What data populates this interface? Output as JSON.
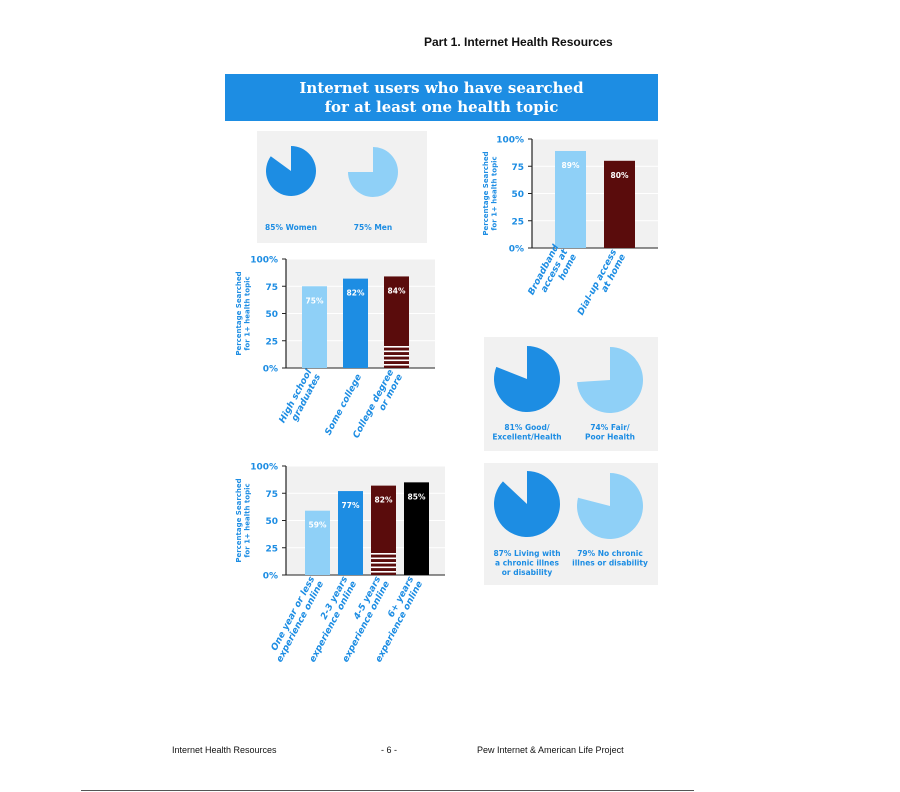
{
  "page": {
    "header_title": "Part 1. Internet Health Resources",
    "footer_left": "Internet Health Resources",
    "footer_center": "- 6 -",
    "footer_right": "Pew Internet & American Life Project"
  },
  "infographic": {
    "title_line1": "Internet users who have searched",
    "title_line2": "for at least one health topic"
  },
  "colors": {
    "blue": "#1d8de3",
    "light_blue": "#8fd0f7",
    "maroon": "#5a0c0c",
    "black": "#000000",
    "panel": "#f1f1f1"
  },
  "chart_data": [
    {
      "type": "pie",
      "panel": "gender",
      "slices": [
        {
          "label_lines": [
            "85% Women"
          ],
          "value": 85,
          "color": "#1d8de3"
        },
        {
          "label_lines": [
            "75% Men"
          ],
          "value": 75,
          "color": "#8fd0f7"
        }
      ]
    },
    {
      "type": "bar",
      "panel": "connection",
      "ylabel_lines": [
        "Percentage Searched",
        "for 1+ health topic"
      ],
      "ylim": [
        0,
        100
      ],
      "yticks": [
        "0%",
        "25",
        "50",
        "75",
        "100%"
      ],
      "categories": [
        {
          "lines": [
            "Broadband",
            "access at",
            "home"
          ]
        },
        {
          "lines": [
            "Dial-up access",
            "at home"
          ]
        }
      ],
      "values": [
        89,
        80
      ],
      "value_labels": [
        "89%",
        "80%"
      ],
      "colors": [
        "#8fd0f7",
        "#5a0c0c"
      ],
      "stripes": [
        false,
        false
      ]
    },
    {
      "type": "bar",
      "panel": "education",
      "ylabel_lines": [
        "Percentage Searched",
        "for 1+ health topic"
      ],
      "ylim": [
        0,
        100
      ],
      "yticks": [
        "0%",
        "25",
        "50",
        "75",
        "100%"
      ],
      "categories": [
        {
          "lines": [
            "High school",
            "graduates"
          ]
        },
        {
          "lines": [
            "Some college"
          ]
        },
        {
          "lines": [
            "College degree",
            "or more"
          ]
        }
      ],
      "values": [
        75,
        82,
        84
      ],
      "value_labels": [
        "75%",
        "82%",
        "84%"
      ],
      "colors": [
        "#8fd0f7",
        "#1d8de3",
        "#5a0c0c"
      ],
      "stripes": [
        false,
        false,
        true
      ]
    },
    {
      "type": "pie",
      "panel": "health",
      "slices": [
        {
          "label_lines": [
            "81% Good/",
            "Excellent/Health"
          ],
          "value": 81,
          "color": "#1d8de3"
        },
        {
          "label_lines": [
            "74% Fair/",
            "Poor Health"
          ],
          "value": 74,
          "color": "#8fd0f7"
        }
      ]
    },
    {
      "type": "bar",
      "panel": "experience",
      "ylabel_lines": [
        "Percentage Searched",
        "for 1+ health topic"
      ],
      "ylim": [
        0,
        100
      ],
      "yticks": [
        "0%",
        "25",
        "50",
        "75",
        "100%"
      ],
      "categories": [
        {
          "lines": [
            "One year or less",
            "experience online"
          ]
        },
        {
          "lines": [
            "2-3 years",
            "experience online"
          ]
        },
        {
          "lines": [
            "4-5 years",
            "experience online"
          ]
        },
        {
          "lines": [
            "6+ years",
            "experience online"
          ]
        }
      ],
      "values": [
        59,
        77,
        82,
        85
      ],
      "value_labels": [
        "59%",
        "77%",
        "82%",
        "85%"
      ],
      "colors": [
        "#8fd0f7",
        "#1d8de3",
        "#5a0c0c",
        "#000000"
      ],
      "stripes": [
        false,
        false,
        true,
        false
      ]
    },
    {
      "type": "pie",
      "panel": "chronic",
      "slices": [
        {
          "label_lines": [
            "87% Living with",
            "a chronic illnes",
            "or disability"
          ],
          "value": 87,
          "color": "#1d8de3"
        },
        {
          "label_lines": [
            "79% No chronic",
            "illnes or disability"
          ],
          "value": 79,
          "color": "#8fd0f7"
        }
      ]
    }
  ]
}
